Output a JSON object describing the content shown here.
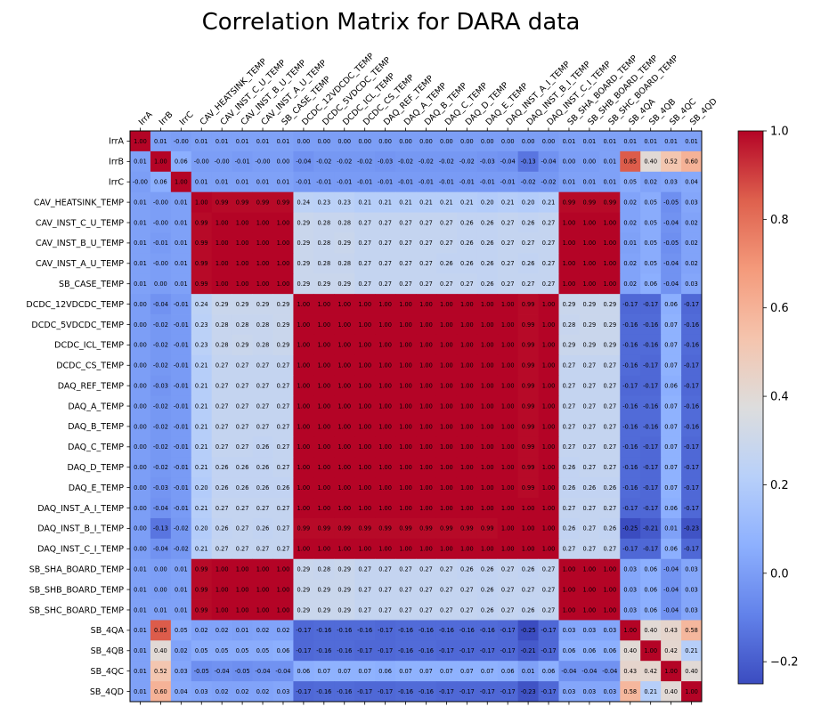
{
  "chart_data": {
    "type": "heatmap",
    "title": "Correlation Matrix for DARA data",
    "labels": [
      "IrrA",
      "IrrB",
      "IrrC",
      "CAV_HEATSINK_TEMP",
      "CAV_INST_C_U_TEMP",
      "CAV_INST_B_U_TEMP",
      "CAV_INST_A_U_TEMP",
      "SB_CASE_TEMP",
      "DCDC_12VDCDC_TEMP",
      "DCDC_5VDCDC_TEMP",
      "DCDC_ICL_TEMP",
      "DCDC_CS_TEMP",
      "DAQ_REF_TEMP",
      "DAQ_A_TEMP",
      "DAQ_B_TEMP",
      "DAQ_C_TEMP",
      "DAQ_D_TEMP",
      "DAQ_E_TEMP",
      "DAQ_INST_A_I_TEMP",
      "DAQ_INST_B_I_TEMP",
      "DAQ_INST_C_I_TEMP",
      "SB_SHA_BOARD_TEMP",
      "SB_SHB_BOARD_TEMP",
      "SB_SHC_BOARD_TEMP",
      "SB_4QA",
      "SB_4QB",
      "SB_4QC",
      "SB_4QD"
    ],
    "colorbar": {
      "min": -0.25,
      "max": 1.0,
      "ticks": [
        "−0.2",
        "0.0",
        "0.2",
        "0.4",
        "0.6",
        "0.8",
        "1.0"
      ],
      "tick_values": [
        -0.2,
        0.0,
        0.2,
        0.4,
        0.6,
        0.8,
        1.0
      ],
      "colormap": "coolwarm"
    },
    "matrix": [
      [
        "1.00",
        "0.01",
        "-0.00",
        "0.01",
        "0.01",
        "0.01",
        "0.01",
        "0.01",
        "0.00",
        "0.00",
        "0.00",
        "0.00",
        "0.00",
        "0.00",
        "0.00",
        "0.00",
        "0.00",
        "0.00",
        "0.00",
        "0.00",
        "0.00",
        "0.01",
        "0.01",
        "0.01",
        "0.01",
        "0.01",
        "0.01",
        "0.01"
      ],
      [
        "0.01",
        "1.00",
        "0.06",
        "-0.00",
        "-0.00",
        "-0.01",
        "-0.00",
        "0.00",
        "-0.04",
        "-0.02",
        "-0.02",
        "-0.02",
        "-0.03",
        "-0.02",
        "-0.02",
        "-0.02",
        "-0.02",
        "-0.03",
        "-0.04",
        "-0.13",
        "-0.04",
        "0.00",
        "0.00",
        "0.01",
        "0.85",
        "0.40",
        "0.52",
        "0.60"
      ],
      [
        "-0.00",
        "0.06",
        "1.00",
        "0.01",
        "0.01",
        "0.01",
        "0.01",
        "0.01",
        "-0.01",
        "-0.01",
        "-0.01",
        "-0.01",
        "-0.01",
        "-0.01",
        "-0.01",
        "-0.01",
        "-0.01",
        "-0.01",
        "-0.01",
        "-0.02",
        "-0.02",
        "0.01",
        "0.01",
        "0.01",
        "0.05",
        "0.02",
        "0.03",
        "0.04"
      ],
      [
        "0.01",
        "-0.00",
        "0.01",
        "1.00",
        "0.99",
        "0.99",
        "0.99",
        "0.99",
        "0.24",
        "0.23",
        "0.23",
        "0.21",
        "0.21",
        "0.21",
        "0.21",
        "0.21",
        "0.21",
        "0.20",
        "0.21",
        "0.20",
        "0.21",
        "0.99",
        "0.99",
        "0.99",
        "0.02",
        "0.05",
        "-0.05",
        "0.03"
      ],
      [
        "0.01",
        "-0.00",
        "0.01",
        "0.99",
        "1.00",
        "1.00",
        "1.00",
        "1.00",
        "0.29",
        "0.28",
        "0.28",
        "0.27",
        "0.27",
        "0.27",
        "0.27",
        "0.27",
        "0.26",
        "0.26",
        "0.27",
        "0.26",
        "0.27",
        "1.00",
        "1.00",
        "1.00",
        "0.02",
        "0.05",
        "-0.04",
        "0.02"
      ],
      [
        "0.01",
        "-0.01",
        "0.01",
        "0.99",
        "1.00",
        "1.00",
        "1.00",
        "1.00",
        "0.29",
        "0.28",
        "0.29",
        "0.27",
        "0.27",
        "0.27",
        "0.27",
        "0.27",
        "0.26",
        "0.26",
        "0.27",
        "0.27",
        "0.27",
        "1.00",
        "1.00",
        "1.00",
        "0.01",
        "0.05",
        "-0.05",
        "0.02"
      ],
      [
        "0.01",
        "-0.00",
        "0.01",
        "0.99",
        "1.00",
        "1.00",
        "1.00",
        "1.00",
        "0.29",
        "0.28",
        "0.28",
        "0.27",
        "0.27",
        "0.27",
        "0.27",
        "0.26",
        "0.26",
        "0.26",
        "0.27",
        "0.26",
        "0.27",
        "1.00",
        "1.00",
        "1.00",
        "0.02",
        "0.05",
        "-0.04",
        "0.02"
      ],
      [
        "0.01",
        "0.00",
        "0.01",
        "0.99",
        "1.00",
        "1.00",
        "1.00",
        "1.00",
        "0.29",
        "0.29",
        "0.29",
        "0.27",
        "0.27",
        "0.27",
        "0.27",
        "0.27",
        "0.27",
        "0.26",
        "0.27",
        "0.27",
        "0.27",
        "1.00",
        "1.00",
        "1.00",
        "0.02",
        "0.06",
        "-0.04",
        "0.03"
      ],
      [
        "0.00",
        "-0.04",
        "-0.01",
        "0.24",
        "0.29",
        "0.29",
        "0.29",
        "0.29",
        "1.00",
        "1.00",
        "1.00",
        "1.00",
        "1.00",
        "1.00",
        "1.00",
        "1.00",
        "1.00",
        "1.00",
        "1.00",
        "0.99",
        "1.00",
        "0.29",
        "0.29",
        "0.29",
        "-0.17",
        "-0.17",
        "0.06",
        "-0.17"
      ],
      [
        "0.00",
        "-0.02",
        "-0.01",
        "0.23",
        "0.28",
        "0.28",
        "0.28",
        "0.29",
        "1.00",
        "1.00",
        "1.00",
        "1.00",
        "1.00",
        "1.00",
        "1.00",
        "1.00",
        "1.00",
        "1.00",
        "1.00",
        "0.99",
        "1.00",
        "0.28",
        "0.29",
        "0.29",
        "-0.16",
        "-0.16",
        "0.07",
        "-0.16"
      ],
      [
        "0.00",
        "-0.02",
        "-0.01",
        "0.23",
        "0.28",
        "0.29",
        "0.28",
        "0.29",
        "1.00",
        "1.00",
        "1.00",
        "1.00",
        "1.00",
        "1.00",
        "1.00",
        "1.00",
        "1.00",
        "1.00",
        "1.00",
        "0.99",
        "1.00",
        "0.29",
        "0.29",
        "0.29",
        "-0.16",
        "-0.16",
        "0.07",
        "-0.16"
      ],
      [
        "0.00",
        "-0.02",
        "-0.01",
        "0.21",
        "0.27",
        "0.27",
        "0.27",
        "0.27",
        "1.00",
        "1.00",
        "1.00",
        "1.00",
        "1.00",
        "1.00",
        "1.00",
        "1.00",
        "1.00",
        "1.00",
        "1.00",
        "0.99",
        "1.00",
        "0.27",
        "0.27",
        "0.27",
        "-0.16",
        "-0.17",
        "0.07",
        "-0.17"
      ],
      [
        "0.00",
        "-0.03",
        "-0.01",
        "0.21",
        "0.27",
        "0.27",
        "0.27",
        "0.27",
        "1.00",
        "1.00",
        "1.00",
        "1.00",
        "1.00",
        "1.00",
        "1.00",
        "1.00",
        "1.00",
        "1.00",
        "1.00",
        "0.99",
        "1.00",
        "0.27",
        "0.27",
        "0.27",
        "-0.17",
        "-0.17",
        "0.06",
        "-0.17"
      ],
      [
        "0.00",
        "-0.02",
        "-0.01",
        "0.21",
        "0.27",
        "0.27",
        "0.27",
        "0.27",
        "1.00",
        "1.00",
        "1.00",
        "1.00",
        "1.00",
        "1.00",
        "1.00",
        "1.00",
        "1.00",
        "1.00",
        "1.00",
        "0.99",
        "1.00",
        "0.27",
        "0.27",
        "0.27",
        "-0.16",
        "-0.16",
        "0.07",
        "-0.16"
      ],
      [
        "0.00",
        "-0.02",
        "-0.01",
        "0.21",
        "0.27",
        "0.27",
        "0.27",
        "0.27",
        "1.00",
        "1.00",
        "1.00",
        "1.00",
        "1.00",
        "1.00",
        "1.00",
        "1.00",
        "1.00",
        "1.00",
        "1.00",
        "0.99",
        "1.00",
        "0.27",
        "0.27",
        "0.27",
        "-0.16",
        "-0.16",
        "0.07",
        "-0.16"
      ],
      [
        "0.00",
        "-0.02",
        "-0.01",
        "0.21",
        "0.27",
        "0.27",
        "0.26",
        "0.27",
        "1.00",
        "1.00",
        "1.00",
        "1.00",
        "1.00",
        "1.00",
        "1.00",
        "1.00",
        "1.00",
        "1.00",
        "1.00",
        "0.99",
        "1.00",
        "0.27",
        "0.27",
        "0.27",
        "-0.16",
        "-0.17",
        "0.07",
        "-0.17"
      ],
      [
        "0.00",
        "-0.02",
        "-0.01",
        "0.21",
        "0.26",
        "0.26",
        "0.26",
        "0.27",
        "1.00",
        "1.00",
        "1.00",
        "1.00",
        "1.00",
        "1.00",
        "1.00",
        "1.00",
        "1.00",
        "1.00",
        "1.00",
        "0.99",
        "1.00",
        "0.26",
        "0.27",
        "0.27",
        "-0.16",
        "-0.17",
        "0.07",
        "-0.17"
      ],
      [
        "0.00",
        "-0.03",
        "-0.01",
        "0.20",
        "0.26",
        "0.26",
        "0.26",
        "0.26",
        "1.00",
        "1.00",
        "1.00",
        "1.00",
        "1.00",
        "1.00",
        "1.00",
        "1.00",
        "1.00",
        "1.00",
        "1.00",
        "0.99",
        "1.00",
        "0.26",
        "0.26",
        "0.26",
        "-0.16",
        "-0.17",
        "0.07",
        "-0.17"
      ],
      [
        "0.00",
        "-0.04",
        "-0.01",
        "0.21",
        "0.27",
        "0.27",
        "0.27",
        "0.27",
        "1.00",
        "1.00",
        "1.00",
        "1.00",
        "1.00",
        "1.00",
        "1.00",
        "1.00",
        "1.00",
        "1.00",
        "1.00",
        "1.00",
        "1.00",
        "0.27",
        "0.27",
        "0.27",
        "-0.17",
        "-0.17",
        "0.06",
        "-0.17"
      ],
      [
        "0.00",
        "-0.13",
        "-0.02",
        "0.20",
        "0.26",
        "0.27",
        "0.26",
        "0.27",
        "0.99",
        "0.99",
        "0.99",
        "0.99",
        "0.99",
        "0.99",
        "0.99",
        "0.99",
        "0.99",
        "0.99",
        "1.00",
        "1.00",
        "1.00",
        "0.26",
        "0.27",
        "0.26",
        "-0.25",
        "-0.21",
        "0.01",
        "-0.23"
      ],
      [
        "0.00",
        "-0.04",
        "-0.02",
        "0.21",
        "0.27",
        "0.27",
        "0.27",
        "0.27",
        "1.00",
        "1.00",
        "1.00",
        "1.00",
        "1.00",
        "1.00",
        "1.00",
        "1.00",
        "1.00",
        "1.00",
        "1.00",
        "1.00",
        "1.00",
        "0.27",
        "0.27",
        "0.27",
        "-0.17",
        "-0.17",
        "0.06",
        "-0.17"
      ],
      [
        "0.01",
        "0.00",
        "0.01",
        "0.99",
        "1.00",
        "1.00",
        "1.00",
        "1.00",
        "0.29",
        "0.28",
        "0.29",
        "0.27",
        "0.27",
        "0.27",
        "0.27",
        "0.27",
        "0.26",
        "0.26",
        "0.27",
        "0.26",
        "0.27",
        "1.00",
        "1.00",
        "1.00",
        "0.03",
        "0.06",
        "-0.04",
        "0.03"
      ],
      [
        "0.01",
        "0.00",
        "0.01",
        "0.99",
        "1.00",
        "1.00",
        "1.00",
        "1.00",
        "0.29",
        "0.29",
        "0.29",
        "0.27",
        "0.27",
        "0.27",
        "0.27",
        "0.27",
        "0.27",
        "0.26",
        "0.27",
        "0.27",
        "0.27",
        "1.00",
        "1.00",
        "1.00",
        "0.03",
        "0.06",
        "-0.04",
        "0.03"
      ],
      [
        "0.01",
        "0.01",
        "0.01",
        "0.99",
        "1.00",
        "1.00",
        "1.00",
        "1.00",
        "0.29",
        "0.29",
        "0.29",
        "0.27",
        "0.27",
        "0.27",
        "0.27",
        "0.27",
        "0.27",
        "0.26",
        "0.27",
        "0.26",
        "0.27",
        "1.00",
        "1.00",
        "1.00",
        "0.03",
        "0.06",
        "-0.04",
        "0.03"
      ],
      [
        "0.01",
        "0.85",
        "0.05",
        "0.02",
        "0.02",
        "0.01",
        "0.02",
        "0.02",
        "-0.17",
        "-0.16",
        "-0.16",
        "-0.16",
        "-0.17",
        "-0.16",
        "-0.16",
        "-0.16",
        "-0.16",
        "-0.16",
        "-0.17",
        "-0.25",
        "-0.17",
        "0.03",
        "0.03",
        "0.03",
        "1.00",
        "0.40",
        "0.43",
        "0.58"
      ],
      [
        "0.01",
        "0.40",
        "0.02",
        "0.05",
        "0.05",
        "0.05",
        "0.05",
        "0.06",
        "-0.17",
        "-0.16",
        "-0.16",
        "-0.17",
        "-0.17",
        "-0.16",
        "-0.16",
        "-0.17",
        "-0.17",
        "-0.17",
        "-0.17",
        "-0.21",
        "-0.17",
        "0.06",
        "0.06",
        "0.06",
        "0.40",
        "1.00",
        "0.42",
        "0.21"
      ],
      [
        "0.01",
        "0.52",
        "0.03",
        "-0.05",
        "-0.04",
        "-0.05",
        "-0.04",
        "-0.04",
        "0.06",
        "0.07",
        "0.07",
        "0.07",
        "0.06",
        "0.07",
        "0.07",
        "0.07",
        "0.07",
        "0.07",
        "0.06",
        "0.01",
        "0.06",
        "-0.04",
        "-0.04",
        "-0.04",
        "0.43",
        "0.42",
        "1.00",
        "0.40"
      ],
      [
        "0.01",
        "0.60",
        "0.04",
        "0.03",
        "0.02",
        "0.02",
        "0.02",
        "0.03",
        "-0.17",
        "-0.16",
        "-0.16",
        "-0.17",
        "-0.17",
        "-0.16",
        "-0.16",
        "-0.17",
        "-0.17",
        "-0.17",
        "-0.17",
        "-0.23",
        "-0.17",
        "0.03",
        "0.03",
        "0.03",
        "0.58",
        "0.21",
        "0.40",
        "1.00"
      ]
    ]
  }
}
